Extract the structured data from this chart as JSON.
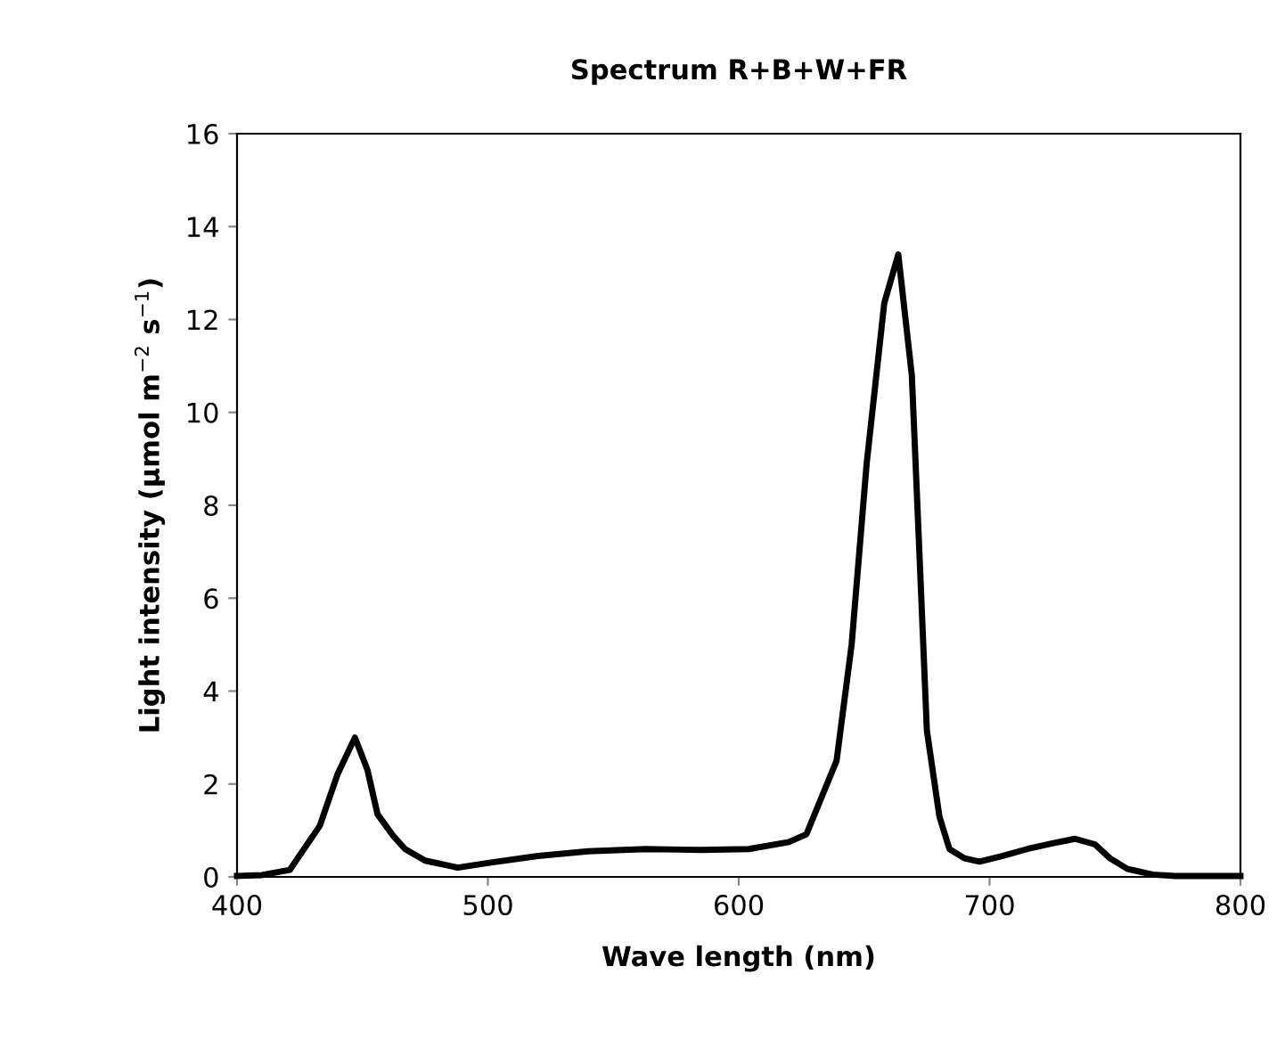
{
  "chart_data": {
    "type": "line",
    "title": "Spectrum R+B+W+FR",
    "xlabel": "Wave length (nm)",
    "ylabel": "Light intensity (µmol m$^{−2}$ s$^{−1}$)",
    "xlim": [
      400,
      800
    ],
    "xticks": [
      400,
      500,
      600,
      700,
      800
    ],
    "ylim": [
      0,
      16
    ],
    "yticks": [
      0,
      2,
      4,
      6,
      8,
      10,
      12,
      14,
      16
    ],
    "grid": false,
    "legend": false,
    "marker": "none",
    "line_style": "solid",
    "series": [
      {
        "color": "#000000",
        "x": [
          400,
          410,
          421,
          433,
          440,
          447,
          452,
          456,
          462,
          467,
          475,
          488,
          500,
          520,
          540,
          563,
          585,
          604,
          620,
          627,
          639,
          645,
          651,
          658,
          663.6,
          669,
          672,
          675,
          680,
          684,
          690,
          696,
          705,
          715,
          725,
          734,
          742,
          748,
          755,
          765,
          774,
          790,
          800
        ],
        "values": [
          0.02,
          0.04,
          0.15,
          1.1,
          2.2,
          3.0,
          2.3,
          1.35,
          0.9,
          0.6,
          0.35,
          0.2,
          0.3,
          0.45,
          0.55,
          0.6,
          0.58,
          0.6,
          0.75,
          0.92,
          2.5,
          5.0,
          8.9,
          12.35,
          13.4,
          10.8,
          7.0,
          3.15,
          1.3,
          0.6,
          0.4,
          0.33,
          0.45,
          0.6,
          0.72,
          0.82,
          0.7,
          0.4,
          0.17,
          0.05,
          0.02,
          0.02,
          0.02
        ]
      }
    ]
  }
}
